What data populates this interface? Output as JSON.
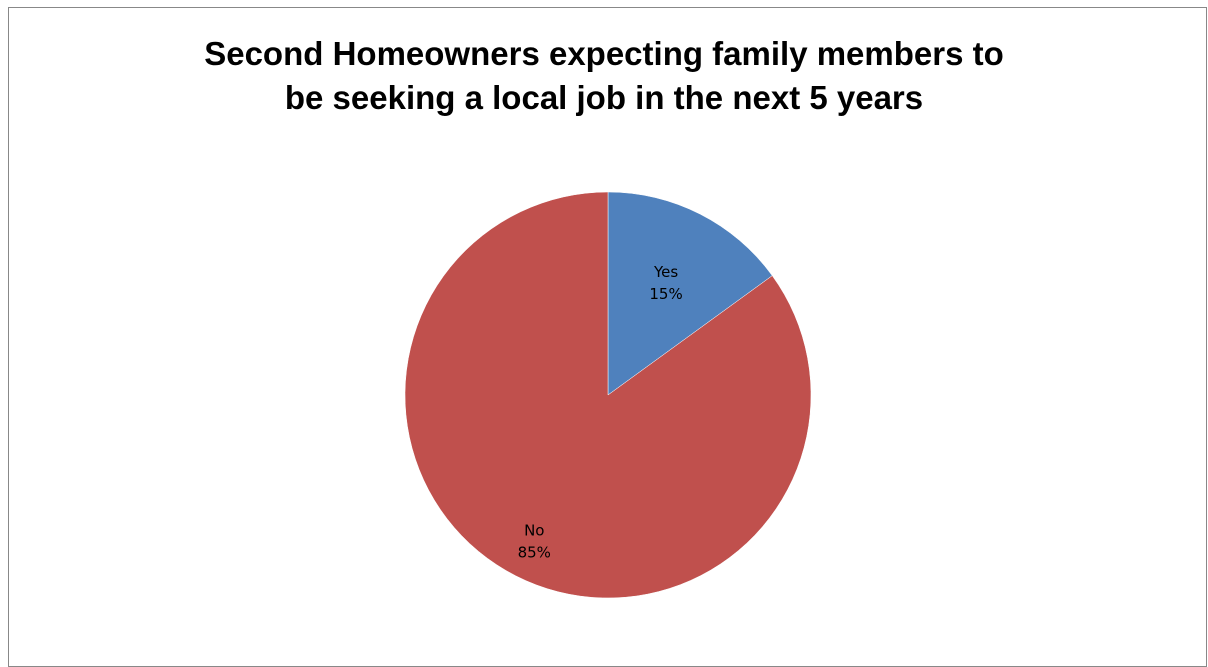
{
  "chart_data": {
    "type": "pie",
    "title_lines": [
      "Second Homeowners expecting family members to",
      "be seeking a local job in the next 5 years"
    ],
    "slices": [
      {
        "label": "Yes",
        "value": 15,
        "value_label": "15%",
        "color": "#4F81BD"
      },
      {
        "label": "No",
        "value": 85,
        "value_label": "85%",
        "color": "#C0504D"
      }
    ],
    "start_angle_deg": 0,
    "direction": "clockwise",
    "legend": "none",
    "data_labels": "inside"
  }
}
